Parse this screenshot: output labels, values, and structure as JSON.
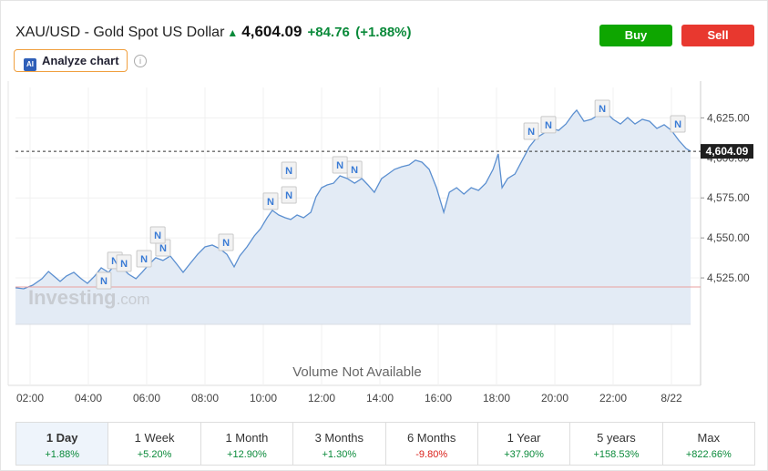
{
  "header": {
    "title": "XAU/USD - Gold Spot US Dollar",
    "price": "4,604.09",
    "change": "+84.76",
    "change_percent": "(+1.88%)",
    "buy": "Buy",
    "sell": "Sell",
    "analyze": "Analyze chart",
    "analyze_icon": "AI"
  },
  "periods": [
    {
      "label": "1 Day",
      "change": "+1.88%"
    },
    {
      "label": "1 Week",
      "change": "+5.20%"
    },
    {
      "label": "1 Month",
      "change": "+12.90%"
    },
    {
      "label": "3 Months",
      "change": "+1.30%"
    },
    {
      "label": "6 Months",
      "change": "-9.80%"
    },
    {
      "label": "1 Year",
      "change": "+37.90%"
    },
    {
      "label": "5 years",
      "change": "+158.53%"
    },
    {
      "label": "Max",
      "change": "+822.66%"
    }
  ],
  "chart_data": {
    "type": "line",
    "color": "#5b8fd0",
    "area_color": "#e3ebf5",
    "grid": true,
    "watermark": [
      "Investing",
      ".com"
    ],
    "volume_note": "Volume Not Available",
    "xlim": [
      1.5,
      25
    ],
    "ylim": [
      4496,
      4644
    ],
    "xticks": [
      {
        "value": 2,
        "label": "02:00"
      },
      {
        "value": 4,
        "label": "04:00"
      },
      {
        "value": 6,
        "label": "06:00"
      },
      {
        "value": 8,
        "label": "08:00"
      },
      {
        "value": 10,
        "label": "10:00"
      },
      {
        "value": 12,
        "label": "12:00"
      },
      {
        "value": 14,
        "label": "14:00"
      },
      {
        "value": 16,
        "label": "16:00"
      },
      {
        "value": 18,
        "label": "18:00"
      },
      {
        "value": 20,
        "label": "20:00"
      },
      {
        "value": 22,
        "label": "22:00"
      },
      {
        "value": 24,
        "label": "8/22"
      }
    ],
    "yticks": [
      {
        "value": 4525,
        "label": "4,525.00"
      },
      {
        "value": 4550,
        "label": "4,550.00"
      },
      {
        "value": 4575,
        "label": "4,575.00"
      },
      {
        "value": 4600,
        "label": "4,600.00"
      },
      {
        "value": 4625,
        "label": "4,625.00"
      }
    ],
    "price_line": {
      "value": 4604.09,
      "label": "4,604.09"
    },
    "reference_line": {
      "value": 4519.33,
      "color": "#e8a0a0"
    },
    "x": [
      1.5,
      1.78,
      2.09,
      2.41,
      2.63,
      2.81,
      3.03,
      3.25,
      3.5,
      3.75,
      3.97,
      4.22,
      4.44,
      4.69,
      4.91,
      5.16,
      5.38,
      5.63,
      5.84,
      6.06,
      6.31,
      6.56,
      6.81,
      7.06,
      7.25,
      7.5,
      7.75,
      8.0,
      8.25,
      8.5,
      8.75,
      9.0,
      9.19,
      9.44,
      9.69,
      9.91,
      10.13,
      10.31,
      10.53,
      10.75,
      10.94,
      11.16,
      11.38,
      11.63,
      11.81,
      12.0,
      12.19,
      12.41,
      12.63,
      12.88,
      13.13,
      13.38,
      13.59,
      13.81,
      14.06,
      14.28,
      14.5,
      14.75,
      15.0,
      15.22,
      15.44,
      15.69,
      15.94,
      16.19,
      16.38,
      16.63,
      16.88,
      17.13,
      17.38,
      17.63,
      17.88,
      18.06,
      18.19,
      18.38,
      18.63,
      18.88,
      19.13,
      19.38,
      19.63,
      19.88,
      20.13,
      20.38,
      20.63,
      20.75,
      21.0,
      21.25,
      21.5,
      21.75,
      22.0,
      22.25,
      22.5,
      22.75,
      23.0,
      23.25,
      23.5,
      23.75,
      24.0,
      24.25,
      24.5,
      24.66
    ],
    "series": [
      {
        "name": "XAU/USD",
        "values": [
          4518.8,
          4518.2,
          4520.5,
          4524.5,
          4529.0,
          4526.2,
          4522.8,
          4526.2,
          4528.5,
          4524.5,
          4521.6,
          4526.2,
          4531.3,
          4528.5,
          4533.0,
          4531.3,
          4527.3,
          4524.5,
          4528.5,
          4533.0,
          4537.6,
          4535.9,
          4538.7,
          4533.0,
          4528.5,
          4534.2,
          4539.8,
          4544.4,
          4545.5,
          4543.3,
          4539.8,
          4531.9,
          4538.7,
          4544.4,
          4551.2,
          4555.8,
          4562.6,
          4567.2,
          4564.3,
          4562.6,
          4561.5,
          4564.3,
          4562.6,
          4566.0,
          4575.7,
          4581.4,
          4583.1,
          4584.2,
          4588.8,
          4587.1,
          4584.2,
          4587.1,
          4583.1,
          4578.5,
          4587.1,
          4589.9,
          4592.8,
          4594.5,
          4595.6,
          4598.5,
          4597.3,
          4592.8,
          4581.4,
          4566.0,
          4578.5,
          4581.4,
          4577.4,
          4581.4,
          4579.7,
          4584.2,
          4592.8,
          4602.5,
          4581.4,
          4587.1,
          4589.9,
          4598.5,
          4607.0,
          4612.7,
          4615.5,
          4618.4,
          4617.2,
          4621.2,
          4627.5,
          4629.8,
          4622.9,
          4624.1,
          4626.9,
          4628.6,
          4624.1,
          4621.2,
          4625.2,
          4621.2,
          4624.1,
          4622.9,
          4618.4,
          4620.7,
          4617.2,
          4611.0,
          4605.9,
          4604.09
        ]
      }
    ],
    "news": [
      {
        "label": "N",
        "x": 4.53,
        "y": 4523.3
      },
      {
        "label": "N",
        "x": 4.91,
        "y": 4535.9
      },
      {
        "label": "N",
        "x": 5.22,
        "y": 4534.2
      },
      {
        "label": "N",
        "x": 5.91,
        "y": 4537.0
      },
      {
        "label": "N",
        "x": 6.56,
        "y": 4543.8
      },
      {
        "label": "N",
        "x": 6.38,
        "y": 4551.8
      },
      {
        "label": "N",
        "x": 8.72,
        "y": 4547.2
      },
      {
        "label": "N",
        "x": 10.25,
        "y": 4572.9
      },
      {
        "label": "N",
        "x": 10.88,
        "y": 4576.8
      },
      {
        "label": "N",
        "x": 10.88,
        "y": 4592.2
      },
      {
        "label": "N",
        "x": 12.63,
        "y": 4595.6
      },
      {
        "label": "N",
        "x": 13.13,
        "y": 4592.8
      },
      {
        "label": "N",
        "x": 19.19,
        "y": 4616.7
      },
      {
        "label": "N",
        "x": 19.78,
        "y": 4620.7
      },
      {
        "label": "N",
        "x": 21.63,
        "y": 4630.9
      },
      {
        "label": "N",
        "x": 24.22,
        "y": 4621.2
      }
    ]
  }
}
